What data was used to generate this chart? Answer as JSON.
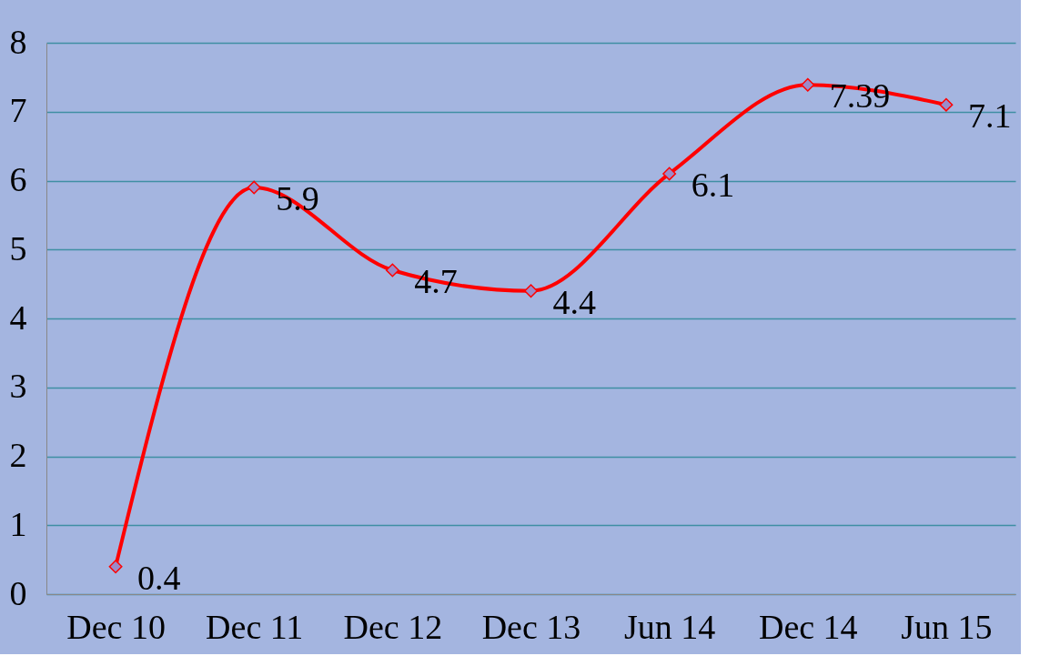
{
  "chart_data": {
    "type": "line",
    "categories": [
      "Dec 10",
      "Dec 11",
      "Dec 12",
      "Dec 13",
      "Jun 14",
      "Dec 14",
      "Jun 15"
    ],
    "series": [
      {
        "color": "#ff0000",
        "values": [
          0.4,
          5.9,
          4.7,
          4.4,
          6.1,
          7.39,
          7.1
        ]
      }
    ],
    "ylim": [
      0,
      8
    ],
    "yticks": [
      0,
      1,
      2,
      3,
      4,
      5,
      6,
      7,
      8
    ],
    "grid": "y",
    "marker": "diamond",
    "line_style": "solid",
    "data_labels": true
  }
}
